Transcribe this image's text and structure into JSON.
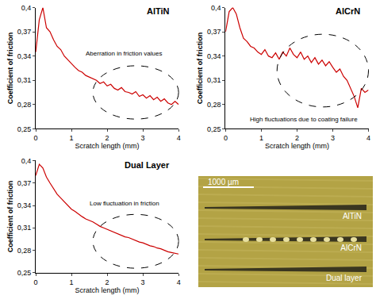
{
  "chart_data": [
    {
      "type": "line",
      "title": "AlTiN",
      "x_label": "Scratch length (mm)",
      "y_label": "Coefficient of friction",
      "color": "#cc0000",
      "line_style": "solid",
      "grid": false,
      "x": [
        0,
        0.1,
        0.2,
        0.3,
        0.4,
        0.5,
        0.6,
        0.7,
        0.8,
        0.9,
        1,
        1.1,
        1.2,
        1.3,
        1.4,
        1.5,
        1.6,
        1.7,
        1.8,
        1.9,
        2,
        2.1,
        2.2,
        2.3,
        2.4,
        2.5,
        2.6,
        2.7,
        2.8,
        2.9,
        3,
        3.1,
        3.2,
        3.3,
        3.4,
        3.5,
        3.6,
        3.7,
        3.8,
        3.9,
        4
      ],
      "values": [
        0.345,
        0.385,
        0.4,
        0.375,
        0.37,
        0.36,
        0.352,
        0.348,
        0.34,
        0.335,
        0.33,
        0.326,
        0.322,
        0.32,
        0.316,
        0.314,
        0.312,
        0.31,
        0.306,
        0.308,
        0.303,
        0.305,
        0.3,
        0.298,
        0.301,
        0.296,
        0.295,
        0.293,
        0.296,
        0.29,
        0.292,
        0.288,
        0.291,
        0.286,
        0.289,
        0.284,
        0.287,
        0.282,
        0.28,
        0.284,
        0.28
      ],
      "xlim": [
        0,
        4
      ],
      "ylim": [
        0.25,
        0.4
      ],
      "xticks": [
        0,
        1,
        2,
        3,
        4
      ],
      "yticks": [
        {
          "value": 0.25,
          "label": "0,25"
        },
        {
          "value": 0.28,
          "label": "0,28"
        },
        {
          "value": 0.31,
          "label": "0,31"
        },
        {
          "value": 0.34,
          "label": "0,34"
        },
        {
          "value": 0.37,
          "label": "0,37"
        },
        {
          "value": 0.4,
          "label": "0,4"
        }
      ],
      "annotations": [
        "Aberration in friction values"
      ]
    },
    {
      "type": "line",
      "title": "AlCrN",
      "x_label": "Scratch length (mm)",
      "y_label": "Coefficient of friction",
      "color": "#cc0000",
      "line_style": "solid",
      "grid": false,
      "x": [
        0,
        0.1,
        0.2,
        0.3,
        0.4,
        0.5,
        0.6,
        0.7,
        0.8,
        0.9,
        1,
        1.1,
        1.2,
        1.3,
        1.4,
        1.5,
        1.6,
        1.7,
        1.8,
        1.9,
        2,
        2.1,
        2.2,
        2.3,
        2.4,
        2.5,
        2.6,
        2.7,
        2.8,
        2.9,
        3,
        3.1,
        3.2,
        3.3,
        3.4,
        3.5,
        3.6,
        3.7,
        3.8,
        3.9,
        4
      ],
      "values": [
        0.37,
        0.395,
        0.4,
        0.392,
        0.375,
        0.362,
        0.358,
        0.352,
        0.35,
        0.345,
        0.342,
        0.348,
        0.34,
        0.338,
        0.344,
        0.336,
        0.345,
        0.34,
        0.35,
        0.342,
        0.338,
        0.345,
        0.336,
        0.34,
        0.332,
        0.338,
        0.33,
        0.335,
        0.328,
        0.333,
        0.326,
        0.32,
        0.324,
        0.315,
        0.31,
        0.3,
        0.29,
        0.276,
        0.3,
        0.295,
        0.298
      ],
      "xlim": [
        0,
        4
      ],
      "ylim": [
        0.25,
        0.4
      ],
      "xticks": [
        0,
        1,
        2,
        3,
        4
      ],
      "yticks": [
        {
          "value": 0.25,
          "label": "0,25"
        },
        {
          "value": 0.28,
          "label": "0,28"
        },
        {
          "value": 0.31,
          "label": "0,31"
        },
        {
          "value": 0.34,
          "label": "0,34"
        },
        {
          "value": 0.37,
          "label": "0,37"
        },
        {
          "value": 0.4,
          "label": "0,4"
        }
      ],
      "annotations": [
        "High fluctuations due to coating failure"
      ]
    },
    {
      "type": "line",
      "title": "Dual Layer",
      "x_label": "Scratch length (mm)",
      "y_label": "Coefficient of friction",
      "color": "#cc0000",
      "line_style": "solid",
      "grid": false,
      "x": [
        0,
        0.1,
        0.2,
        0.3,
        0.4,
        0.5,
        0.6,
        0.7,
        0.8,
        0.9,
        1,
        1.1,
        1.2,
        1.3,
        1.4,
        1.5,
        1.6,
        1.7,
        1.8,
        1.9,
        2,
        2.1,
        2.2,
        2.3,
        2.4,
        2.5,
        2.6,
        2.7,
        2.8,
        2.9,
        3,
        3.1,
        3.2,
        3.3,
        3.4,
        3.5,
        3.6,
        3.7,
        3.8,
        3.9,
        4
      ],
      "values": [
        0.38,
        0.395,
        0.39,
        0.378,
        0.37,
        0.362,
        0.355,
        0.35,
        0.345,
        0.34,
        0.335,
        0.332,
        0.328,
        0.325,
        0.322,
        0.32,
        0.318,
        0.315,
        0.312,
        0.31,
        0.308,
        0.306,
        0.304,
        0.302,
        0.3,
        0.298,
        0.297,
        0.295,
        0.293,
        0.291,
        0.29,
        0.288,
        0.286,
        0.285,
        0.283,
        0.282,
        0.28,
        0.278,
        0.277,
        0.276,
        0.275
      ],
      "xlim": [
        0,
        4
      ],
      "ylim": [
        0.25,
        0.4
      ],
      "xticks": [
        0,
        1,
        2,
        3,
        4
      ],
      "yticks": [
        {
          "value": 0.25,
          "label": "0,25"
        },
        {
          "value": 0.28,
          "label": "0,28"
        },
        {
          "value": 0.31,
          "label": "0,31"
        },
        {
          "value": 0.34,
          "label": "0,34"
        },
        {
          "value": 0.37,
          "label": "0,37"
        },
        {
          "value": 0.4,
          "label": "0,4"
        }
      ],
      "annotations": [
        "Low fluctuation in friction"
      ]
    }
  ],
  "image": {
    "scale_label": "1000 µm",
    "tracks": [
      "AlTiN",
      "AlCrN",
      "Dual layer"
    ]
  }
}
